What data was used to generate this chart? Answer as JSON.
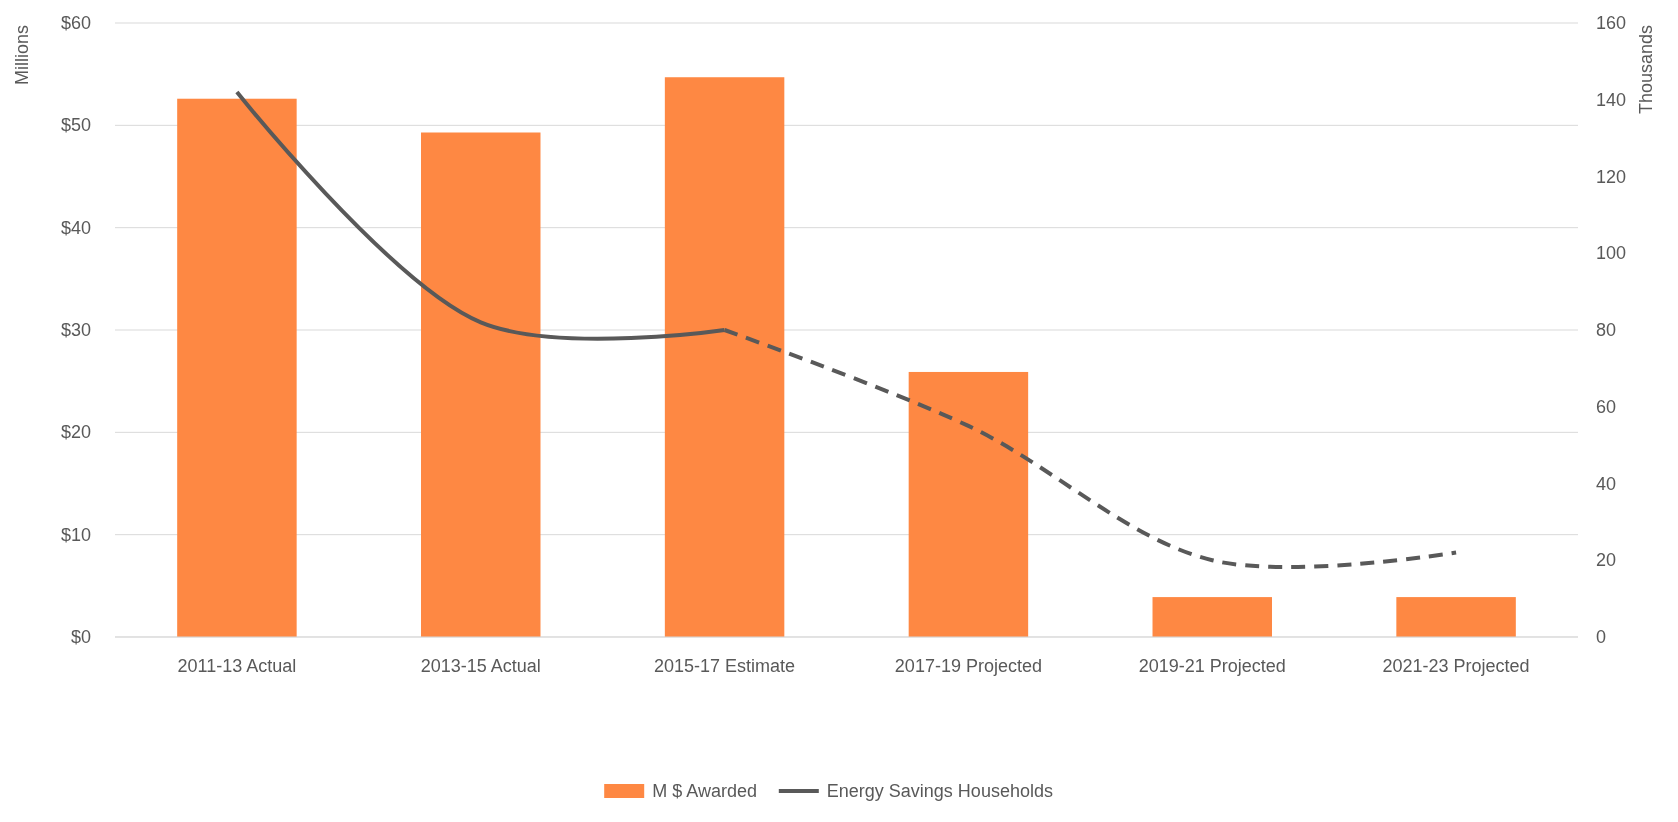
{
  "chart_data": {
    "type": "bar",
    "ylabel": "Millions",
    "y2label": "Thousands",
    "categories": [
      "2011-13 Actual",
      "2013-15 Actual",
      "2015-17 Estimate",
      "2017-19 Projected",
      "2019-21 Projected",
      "2021-23 Projected"
    ],
    "series": [
      {
        "name": "M $ Awarded",
        "color": "#fe8843",
        "values": [
          52.6,
          49.3,
          54.7,
          25.9,
          3.9,
          3.9
        ]
      },
      {
        "name": "Energy Savings Households",
        "type": "line",
        "axis": "y2",
        "color": "#595959",
        "line_style": "solid",
        "values": [
          142,
          82,
          80,
          null,
          null,
          null
        ]
      },
      {
        "type": "line",
        "axis": "y2",
        "color": "#595959",
        "line_style": "dashed",
        "values": [
          null,
          null,
          80,
          55,
          20,
          22
        ]
      }
    ],
    "ylim": [
      0,
      60
    ],
    "yticks": [
      {
        "value": 0,
        "label": "$0"
      },
      {
        "value": 10,
        "label": "$10"
      },
      {
        "value": 20,
        "label": "$20"
      },
      {
        "value": 30,
        "label": "$30"
      },
      {
        "value": 40,
        "label": "$40"
      },
      {
        "value": 50,
        "label": "$50"
      },
      {
        "value": 60,
        "label": "$60"
      }
    ],
    "y2lim": [
      0,
      160
    ],
    "y2ticks": [
      0,
      20,
      40,
      60,
      80,
      100,
      120,
      140,
      160
    ],
    "grid": "y",
    "legend": "bottom",
    "marker": "none"
  }
}
